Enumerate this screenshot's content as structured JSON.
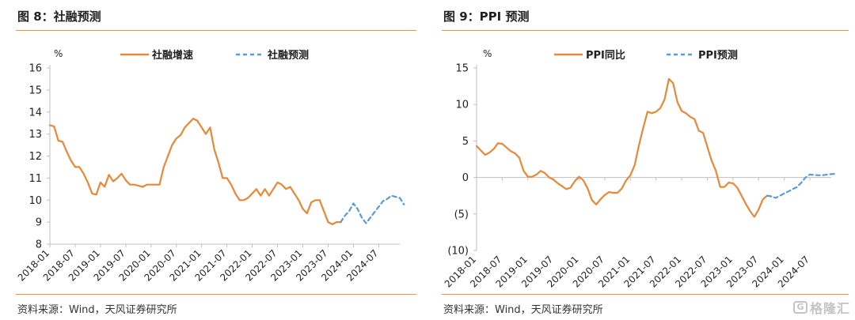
{
  "colors": {
    "actual": "#E6883A",
    "forecast": "#5B9BD5",
    "rule": "#E69A3C",
    "axis": "#BFBFBF",
    "text": "#222222"
  },
  "watermark": {
    "text": "格隆汇",
    "icon": "g-logo-icon"
  },
  "chart_data": [
    {
      "type": "line",
      "title": "图 8：社融预测",
      "source": "资料来源：Wind，天风证券研究所",
      "yunit": "%",
      "ylim": [
        8,
        16
      ],
      "yticks": [
        8,
        9,
        10,
        11,
        12,
        13,
        14,
        15,
        16
      ],
      "ytick_labels": [
        "8",
        "9",
        "10",
        "11",
        "12",
        "13",
        "14",
        "15",
        "16"
      ],
      "x_start": "2018-01",
      "x_end": "2024-12",
      "xtick_labels": [
        "2018-01",
        "2018-07",
        "2019-01",
        "2019-07",
        "2020-01",
        "2020-07",
        "2021-01",
        "2021-07",
        "2022-01",
        "2022-07",
        "2023-01",
        "2023-07",
        "2024-01",
        "2024-07"
      ],
      "legend_position": "top",
      "grid": false,
      "series": [
        {
          "name": "社融增速",
          "style": "solid",
          "x_start": "2018-01",
          "values": [
            13.4,
            13.35,
            12.7,
            12.65,
            12.2,
            11.8,
            11.5,
            11.5,
            11.2,
            10.8,
            10.3,
            10.25,
            10.8,
            10.6,
            11.15,
            10.85,
            11.0,
            11.2,
            10.9,
            10.7,
            10.7,
            10.65,
            10.6,
            10.7,
            10.7,
            10.7,
            10.7,
            11.5,
            12.0,
            12.5,
            12.8,
            12.95,
            13.3,
            13.5,
            13.7,
            13.6,
            13.3,
            13.0,
            13.3,
            12.3,
            11.7,
            11.0,
            11.0,
            10.7,
            10.3,
            10.0,
            10.0,
            10.1,
            10.3,
            10.5,
            10.2,
            10.5,
            10.2,
            10.5,
            10.8,
            10.7,
            10.5,
            10.6,
            10.3,
            10.0,
            9.6,
            9.4,
            9.9,
            10.0,
            10.0,
            9.5,
            9.0,
            8.9,
            9.0,
            9.0
          ]
        },
        {
          "name": "社融预测",
          "style": "dashed",
          "x_start": "2023-10",
          "values": [
            9.0,
            9.3,
            9.5,
            9.85,
            9.6,
            9.2,
            8.95,
            9.2,
            9.45,
            9.7,
            9.95,
            10.05,
            10.2,
            10.15,
            10.1,
            9.8
          ]
        }
      ]
    },
    {
      "type": "line",
      "title": "图 9：PPI 预测",
      "source": "资料来源：Wind，天风证券研究所",
      "yunit": "%",
      "ylim": [
        -10,
        15
      ],
      "yticks": [
        -10,
        -5,
        0,
        5,
        10,
        15
      ],
      "ytick_labels": [
        "(10)",
        "(5)",
        "0",
        "5",
        "10",
        "15"
      ],
      "x_start": "2018-01",
      "x_end": "2024-12",
      "xtick_labels": [
        "2018-01",
        "2018-07",
        "2019-01",
        "2019-07",
        "2020-01",
        "2020-07",
        "2021-01",
        "2021-07",
        "2022-01",
        "2022-07",
        "2023-01",
        "2023-07",
        "2024-01",
        "2024-07"
      ],
      "legend_position": "top",
      "grid": false,
      "series": [
        {
          "name": "PPI同比",
          "style": "solid",
          "x_start": "2018-01",
          "values": [
            4.3,
            3.7,
            3.1,
            3.4,
            3.9,
            4.7,
            4.6,
            4.1,
            3.6,
            3.3,
            2.7,
            0.9,
            0.1,
            0.1,
            0.4,
            0.9,
            0.6,
            0.0,
            -0.3,
            -0.8,
            -1.2,
            -1.6,
            -1.4,
            -0.5,
            0.1,
            -0.4,
            -1.5,
            -3.1,
            -3.7,
            -3.0,
            -2.4,
            -2.0,
            -2.1,
            -2.1,
            -1.5,
            -0.4,
            0.3,
            1.7,
            4.4,
            6.8,
            9.0,
            8.8,
            9.0,
            9.5,
            10.7,
            13.5,
            12.9,
            10.3,
            9.1,
            8.8,
            8.3,
            8.0,
            6.4,
            6.1,
            4.2,
            2.3,
            0.9,
            -1.3,
            -1.3,
            -0.7,
            -0.8,
            -1.4,
            -2.5,
            -3.6,
            -4.6,
            -5.4,
            -4.4,
            -3.0,
            -2.5,
            -2.6
          ]
        },
        {
          "name": "PPI预测",
          "style": "dashed",
          "x_start": "2023-09",
          "values": [
            -2.5,
            -2.6,
            -2.8,
            -2.5,
            -2.2,
            -1.9,
            -1.6,
            -1.3,
            -0.7,
            0.0,
            0.4,
            0.35,
            0.3,
            0.3,
            0.4,
            0.45,
            0.5
          ]
        }
      ]
    }
  ]
}
